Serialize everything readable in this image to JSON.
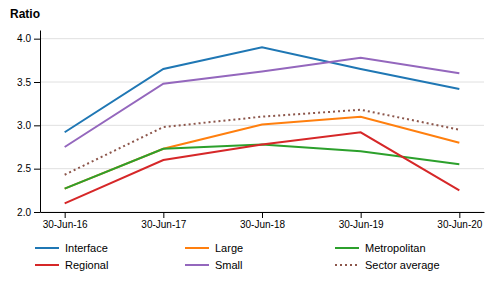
{
  "chart_data": {
    "type": "line",
    "ylabel": "Ratio",
    "categories": [
      "30-Jun-16",
      "30-Jun-17",
      "30-Jun-18",
      "30-Jun-19",
      "30-Jun-20"
    ],
    "series": [
      {
        "name": "Interface",
        "values": [
          2.92,
          3.65,
          3.9,
          3.65,
          3.42
        ],
        "line_style": "solid"
      },
      {
        "name": "Large",
        "values": [
          2.27,
          2.73,
          3.01,
          3.1,
          2.8
        ],
        "line_style": "solid"
      },
      {
        "name": "Metropolitan",
        "values": [
          2.27,
          2.73,
          2.78,
          2.7,
          2.55
        ],
        "line_style": "solid"
      },
      {
        "name": "Regional",
        "values": [
          2.1,
          2.6,
          2.78,
          2.92,
          2.25
        ],
        "line_style": "solid"
      },
      {
        "name": "Small",
        "values": [
          2.75,
          3.48,
          3.62,
          3.78,
          3.6
        ],
        "line_style": "solid"
      },
      {
        "name": "Sector average",
        "values": [
          2.43,
          2.98,
          3.1,
          3.18,
          2.95
        ],
        "line_style": "dotted"
      }
    ],
    "ylim": [
      2.0,
      4.1
    ],
    "yticks": [
      {
        "value": 2.0,
        "label": "2.0"
      },
      2.5,
      {
        "value": 3.0,
        "label": "3.0"
      },
      3.5,
      {
        "value": 4.0,
        "label": "4.0"
      }
    ],
    "grid": true,
    "legend": "bottom"
  }
}
